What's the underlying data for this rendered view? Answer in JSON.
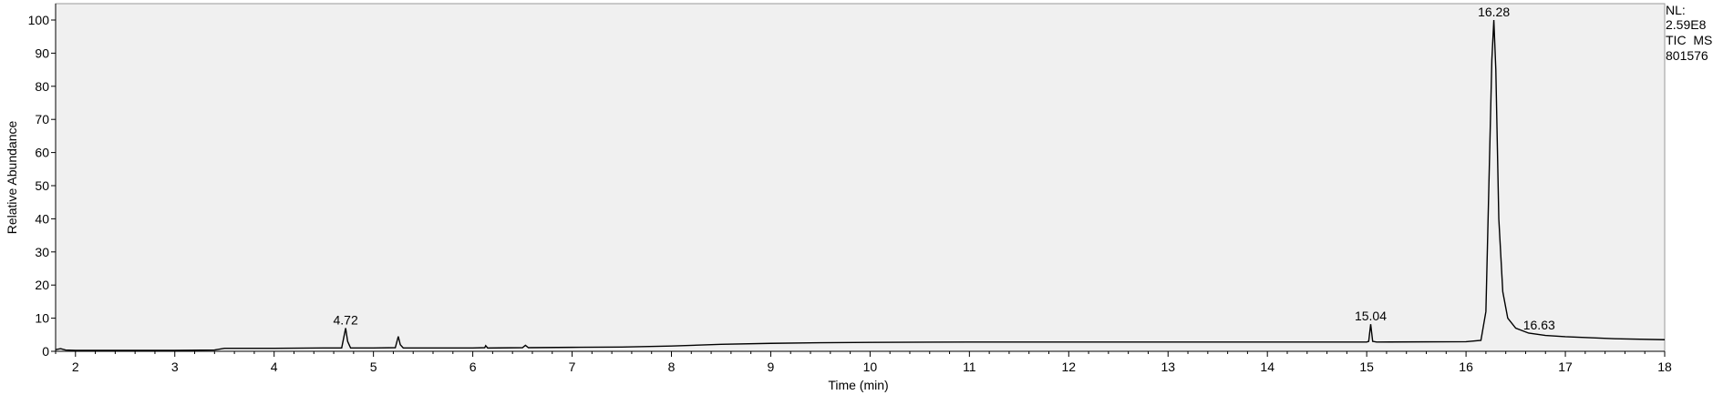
{
  "chart_data": {
    "type": "line",
    "xlabel": "Time (min)",
    "ylabel": "Relative Abundance",
    "xlim": [
      1.8,
      18
    ],
    "ylim": [
      0,
      100
    ],
    "x_ticks": [
      2,
      3,
      4,
      5,
      6,
      7,
      8,
      9,
      10,
      11,
      12,
      13,
      14,
      15,
      16,
      17,
      18
    ],
    "y_ticks": [
      0,
      10,
      20,
      30,
      40,
      50,
      60,
      70,
      80,
      90,
      100
    ],
    "plot_background": "#f0f0f0",
    "trace_color": "#000000",
    "info_lines": [
      "NL:",
      "2.59E8",
      "TIC  MS",
      "801576"
    ],
    "peak_labels": [
      {
        "label": "4.72",
        "x": 4.72,
        "y": 7.0
      },
      {
        "label": "15.04",
        "x": 15.04,
        "y": 8.2
      },
      {
        "label": "16.28",
        "x": 16.28,
        "y": 100
      },
      {
        "label": "16.63",
        "x": 16.63,
        "y": 5.5
      }
    ],
    "series": [
      {
        "points": [
          [
            1.8,
            0.5
          ],
          [
            1.85,
            0.8
          ],
          [
            1.9,
            0.4
          ],
          [
            2.0,
            0.3
          ],
          [
            2.5,
            0.3
          ],
          [
            3.0,
            0.3
          ],
          [
            3.4,
            0.4
          ],
          [
            3.5,
            0.9
          ],
          [
            4.0,
            0.9
          ],
          [
            4.5,
            1.0
          ],
          [
            4.68,
            1.0
          ],
          [
            4.7,
            4.0
          ],
          [
            4.72,
            7.0
          ],
          [
            4.74,
            3.0
          ],
          [
            4.77,
            1.0
          ],
          [
            5.0,
            1.0
          ],
          [
            5.22,
            1.1
          ],
          [
            5.25,
            4.5
          ],
          [
            5.27,
            2.0
          ],
          [
            5.3,
            1.0
          ],
          [
            6.0,
            1.0
          ],
          [
            6.12,
            1.1
          ],
          [
            6.13,
            1.7
          ],
          [
            6.15,
            1.0
          ],
          [
            6.5,
            1.1
          ],
          [
            6.53,
            1.8
          ],
          [
            6.56,
            1.1
          ],
          [
            7.0,
            1.2
          ],
          [
            7.5,
            1.3
          ],
          [
            8.0,
            1.6
          ],
          [
            8.5,
            2.1
          ],
          [
            9.0,
            2.4
          ],
          [
            9.5,
            2.6
          ],
          [
            10.0,
            2.7
          ],
          [
            11.0,
            2.8
          ],
          [
            12.0,
            2.8
          ],
          [
            13.0,
            2.8
          ],
          [
            14.0,
            2.8
          ],
          [
            15.0,
            2.8
          ],
          [
            15.02,
            3.0
          ],
          [
            15.04,
            8.2
          ],
          [
            15.06,
            3.0
          ],
          [
            15.1,
            2.8
          ],
          [
            16.0,
            2.9
          ],
          [
            16.15,
            3.3
          ],
          [
            16.2,
            12.0
          ],
          [
            16.23,
            50.0
          ],
          [
            16.26,
            88.0
          ],
          [
            16.28,
            100.0
          ],
          [
            16.3,
            85.0
          ],
          [
            16.33,
            40.0
          ],
          [
            16.37,
            18.0
          ],
          [
            16.42,
            10.0
          ],
          [
            16.5,
            7.0
          ],
          [
            16.63,
            5.5
          ],
          [
            16.8,
            4.8
          ],
          [
            17.0,
            4.4
          ],
          [
            17.5,
            3.8
          ],
          [
            18.0,
            3.5
          ]
        ]
      }
    ]
  }
}
